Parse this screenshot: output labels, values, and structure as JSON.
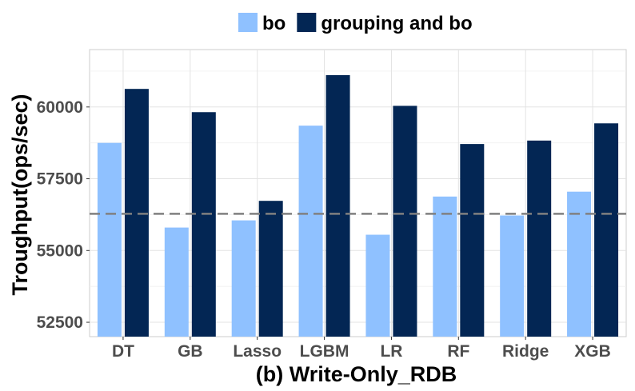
{
  "chart_data": {
    "type": "bar",
    "title": "",
    "xlabel": "(b) Write-Only_RDB",
    "ylabel": "Troughput(ops/sec)",
    "categories": [
      "DT",
      "GB",
      "Lasso",
      "LGBM",
      "LR",
      "RF",
      "Ridge",
      "XGB"
    ],
    "series": [
      {
        "name": "bo",
        "color": "#8fc1ff",
        "values": [
          58750,
          55800,
          56050,
          59350,
          55550,
          56880,
          56220,
          57050
        ]
      },
      {
        "name": "grouping and bo",
        "color": "#032654",
        "values": [
          60630,
          59820,
          56730,
          61110,
          60040,
          58710,
          58830,
          59430
        ]
      }
    ],
    "ylim": [
      52000,
      62000
    ],
    "yticks": [
      52500,
      55000,
      57500,
      60000
    ],
    "ytick_labels": [
      "52500",
      "55000",
      "57500",
      "60000"
    ],
    "reference_line": {
      "value": 56280,
      "style": "dashed",
      "color": "#808080"
    },
    "grid": true,
    "legend_position": "top"
  }
}
